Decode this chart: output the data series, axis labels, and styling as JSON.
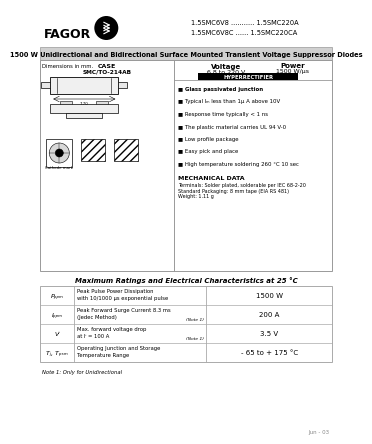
{
  "bg_color": "#ffffff",
  "part_numbers_line1": "1.5SMC6V8 ........... 1.5SMC220A",
  "part_numbers_line2": "1.5SMC6V8C ...... 1.5SMC220CA",
  "title_line": "1500 W Unidirectional and Bidirectional Surface Mounted Transient Voltage Suppressor Diodes",
  "case_label": "CASE",
  "case_sub": "SMC/TO-214AB",
  "voltage_label": "Voltage",
  "voltage_val": "6.8 to 220 V",
  "power_label": "Power",
  "power_val": "1500 W/μs",
  "hyperrect": "HYPERRECTIFIER",
  "features": [
    "Glass passivated junction",
    "Typical Iₘ less than 1μ A above 10V",
    "Response time typically < 1 ns",
    "The plastic material carries UL 94 V-0",
    "Low profile package",
    "Easy pick and place",
    "High temperature soldering 260 °C 10 sec"
  ],
  "mech_title": "MECHANICAL DATA",
  "mech_lines": [
    "Terminals: Solder plated, solderable per IEC 68-2-20",
    "Standard Packaging: 8 mm tape (EIA RS 481)",
    "Weight: 1.11 g"
  ],
  "table_title": "Maximum Ratings and Electrical Characteristics at 25 °C",
  "table_rows": [
    {
      "sym": "Pₚₚₘ",
      "desc1": "Peak Pulse Power Dissipation",
      "desc2": "with 10/1000 μs exponential pulse",
      "note": "",
      "val": "1500 W"
    },
    {
      "sym": "Iₚₚₘ",
      "desc1": "Peak Forward Surge Current 8.3 ms",
      "desc2": "(Jedec Method)",
      "note": "(Note 1)",
      "val": "200 A"
    },
    {
      "sym": "Vⁱ",
      "desc1": "Max. forward voltage drop",
      "desc2": "at Iⁱ = 100 A",
      "note": "(Note 1)",
      "val": "3.5 V"
    },
    {
      "sym": "Tⱼ, Tₚₛₘ",
      "desc1": "Operating Junction and Storage",
      "desc2": "Temperature Range",
      "note": "",
      "val": "- 65 to + 175 °C"
    }
  ],
  "note_text": "Note 1: Only for Unidirectional",
  "date_text": "Jun - 03",
  "dim_label": "Dimensions in mm.",
  "gray_banner": "#d0d0d0",
  "table_gray": "#e8e8e8",
  "border_col": "#aaaaaa"
}
